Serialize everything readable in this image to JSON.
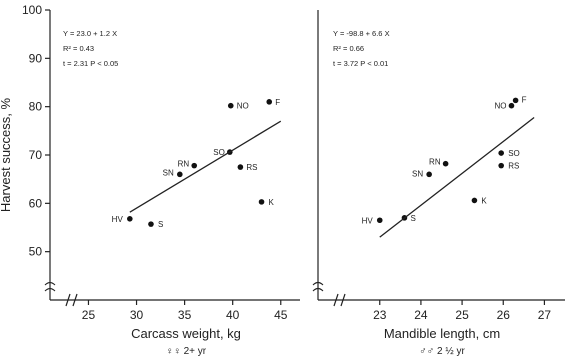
{
  "chart_data": [
    {
      "type": "scatter",
      "panel": "left",
      "xlabel": "Carcass weight, kg",
      "xlabel_sub": "♀♀ 2+ yr",
      "ylabel": "Harvest success, %",
      "xlim": [
        21,
        47
      ],
      "ylim": [
        40,
        100
      ],
      "x_ticks": [
        25,
        30,
        35,
        40,
        45
      ],
      "y_ticks": [
        50,
        60,
        70,
        80,
        90,
        100
      ],
      "annotations": [
        "Y = 23.0 + 1.2 X",
        "R² = 0.43",
        "t = 2.31   P < 0.05"
      ],
      "regression": {
        "intercept": 23.0,
        "slope": 1.2,
        "x_range": [
          29.3,
          45
        ]
      },
      "points": [
        {
          "label": "HV",
          "x": 29.3,
          "y": 56.8
        },
        {
          "label": "S",
          "x": 31.5,
          "y": 55.7
        },
        {
          "label": "SN",
          "x": 34.5,
          "y": 66.0
        },
        {
          "label": "RN",
          "x": 36.0,
          "y": 67.8
        },
        {
          "label": "SO",
          "x": 39.7,
          "y": 70.6
        },
        {
          "label": "NO",
          "x": 39.8,
          "y": 80.2
        },
        {
          "label": "RS",
          "x": 40.8,
          "y": 67.5
        },
        {
          "label": "K",
          "x": 43.0,
          "y": 60.3
        },
        {
          "label": "F",
          "x": 43.8,
          "y": 81.0
        }
      ]
    },
    {
      "type": "scatter",
      "panel": "right",
      "xlabel": "Mandible length, cm",
      "xlabel_sub": "♂♂ 2 ½ yr",
      "xlim": [
        21.5,
        27.5
      ],
      "ylim": [
        40,
        100
      ],
      "x_ticks": [
        23,
        24,
        25,
        26,
        27
      ],
      "annotations": [
        "Y = -98.8 + 6.6 X",
        "R² = 0.66",
        "t = 3.72   P < 0.01"
      ],
      "regression": {
        "intercept": -98.8,
        "slope": 6.6,
        "x_range": [
          23.0,
          26.75
        ]
      },
      "points": [
        {
          "label": "HV",
          "x": 23.0,
          "y": 56.5
        },
        {
          "label": "S",
          "x": 23.6,
          "y": 57.0
        },
        {
          "label": "SN",
          "x": 24.2,
          "y": 66.0
        },
        {
          "label": "RN",
          "x": 24.6,
          "y": 68.2
        },
        {
          "label": "K",
          "x": 25.3,
          "y": 60.6
        },
        {
          "label": "SO",
          "x": 25.95,
          "y": 70.4
        },
        {
          "label": "RS",
          "x": 25.95,
          "y": 67.8
        },
        {
          "label": "NO",
          "x": 26.2,
          "y": 80.2
        },
        {
          "label": "F",
          "x": 26.3,
          "y": 81.3
        }
      ]
    }
  ]
}
